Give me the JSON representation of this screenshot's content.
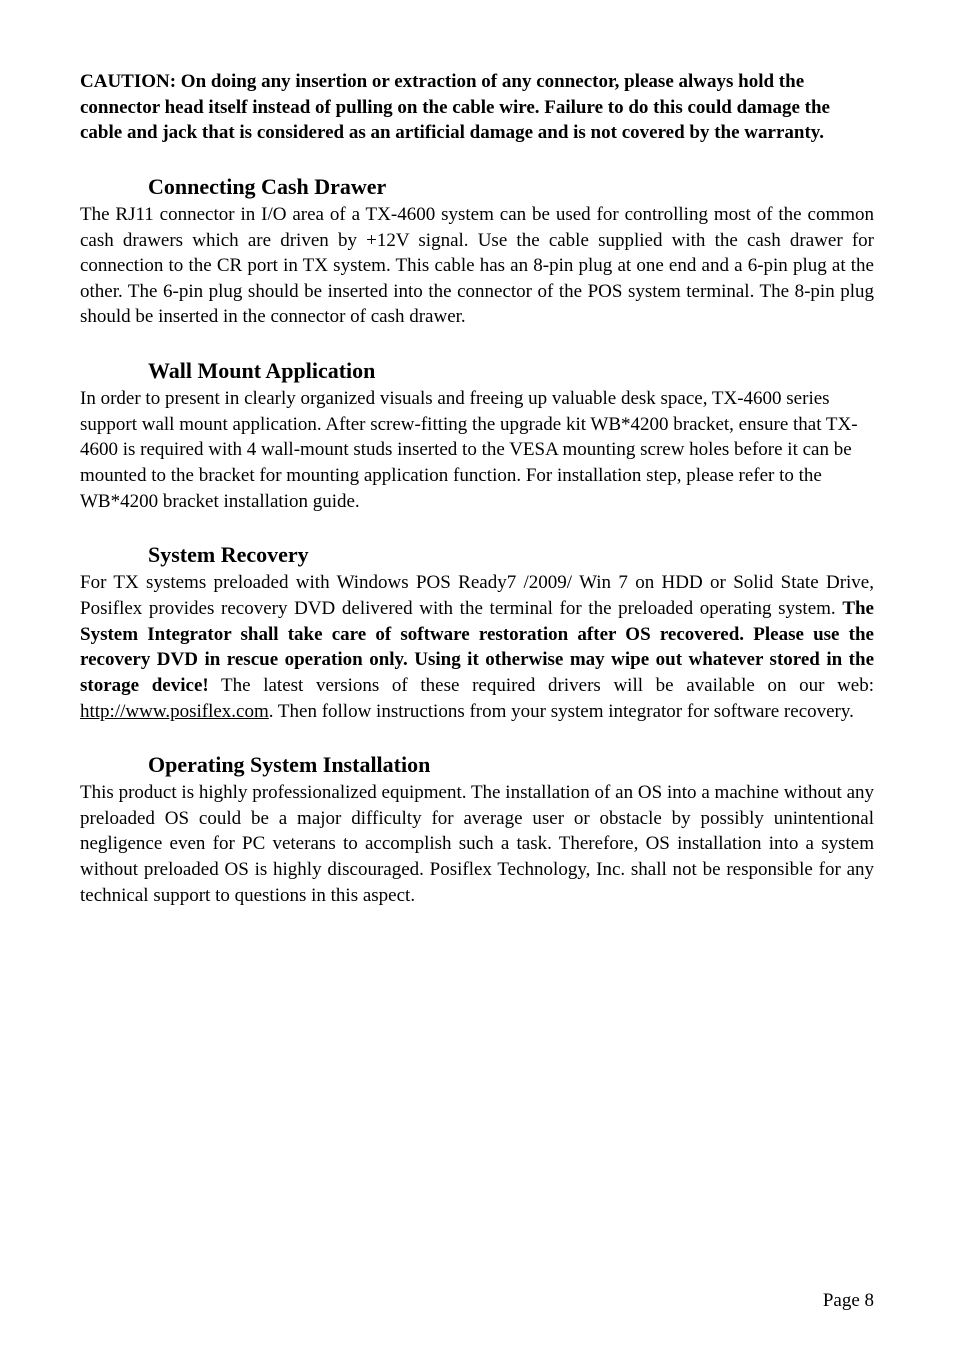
{
  "caution": "CAUTION: On doing any insertion or extraction of any connector, please always hold the connector head itself instead of pulling on the cable wire. Failure to do this could damage the cable and jack that is considered as an artificial damage and is not covered by the warranty.",
  "sections": {
    "cash_drawer": {
      "heading": "Connecting Cash Drawer",
      "body": "The RJ11 connector in I/O area of a TX-4600 system can be used for controlling most of the common cash drawers which are driven by +12V signal. Use the cable supplied with the cash drawer for connection to the CR port in TX system. This cable has an 8-pin plug at one end and a 6-pin plug at the other. The 6-pin plug should be inserted into the connector of the POS system terminal. The 8-pin plug should be inserted in the connector of cash drawer."
    },
    "wall_mount": {
      "heading": "Wall Mount Application",
      "body": "In order to present in clearly organized visuals and freeing up valuable desk space, TX-4600 series support wall mount application. After screw-fitting the upgrade kit WB*4200 bracket, ensure that TX-4600 is required with 4 wall-mount studs inserted to the VESA mounting screw holes before it can be mounted to the bracket for mounting application function. For installation step, please refer to the WB*4200 bracket installation guide."
    },
    "system_recovery": {
      "heading": "System Recovery",
      "body_pre": "For TX systems preloaded with Windows POS Ready7 /2009/ Win 7 on HDD or Solid State Drive, Posiflex provides recovery DVD delivered with the terminal for the preloaded operating system. ",
      "body_bold": "The System Integrator shall take care of software restoration after OS recovered. Please use the recovery DVD in rescue operation only. Using it otherwise may wipe out whatever stored in the storage device!",
      "body_mid": " The latest versions of these required drivers will be available on our web: ",
      "link": "http://www.posiflex.com",
      "body_post": ". Then follow instructions from your system integrator for software recovery."
    },
    "os_install": {
      "heading": "Operating System Installation",
      "body": "This product is highly professionalized equipment. The installation of an OS into a machine without any preloaded OS could be a major difficulty for average user or obstacle by possibly unintentional negligence even for PC veterans to accomplish such a task. Therefore, OS installation into a system without preloaded OS is highly discouraged. Posiflex Technology, Inc. shall not be responsible for any technical support to questions in this aspect."
    }
  },
  "page_number": "Page 8"
}
